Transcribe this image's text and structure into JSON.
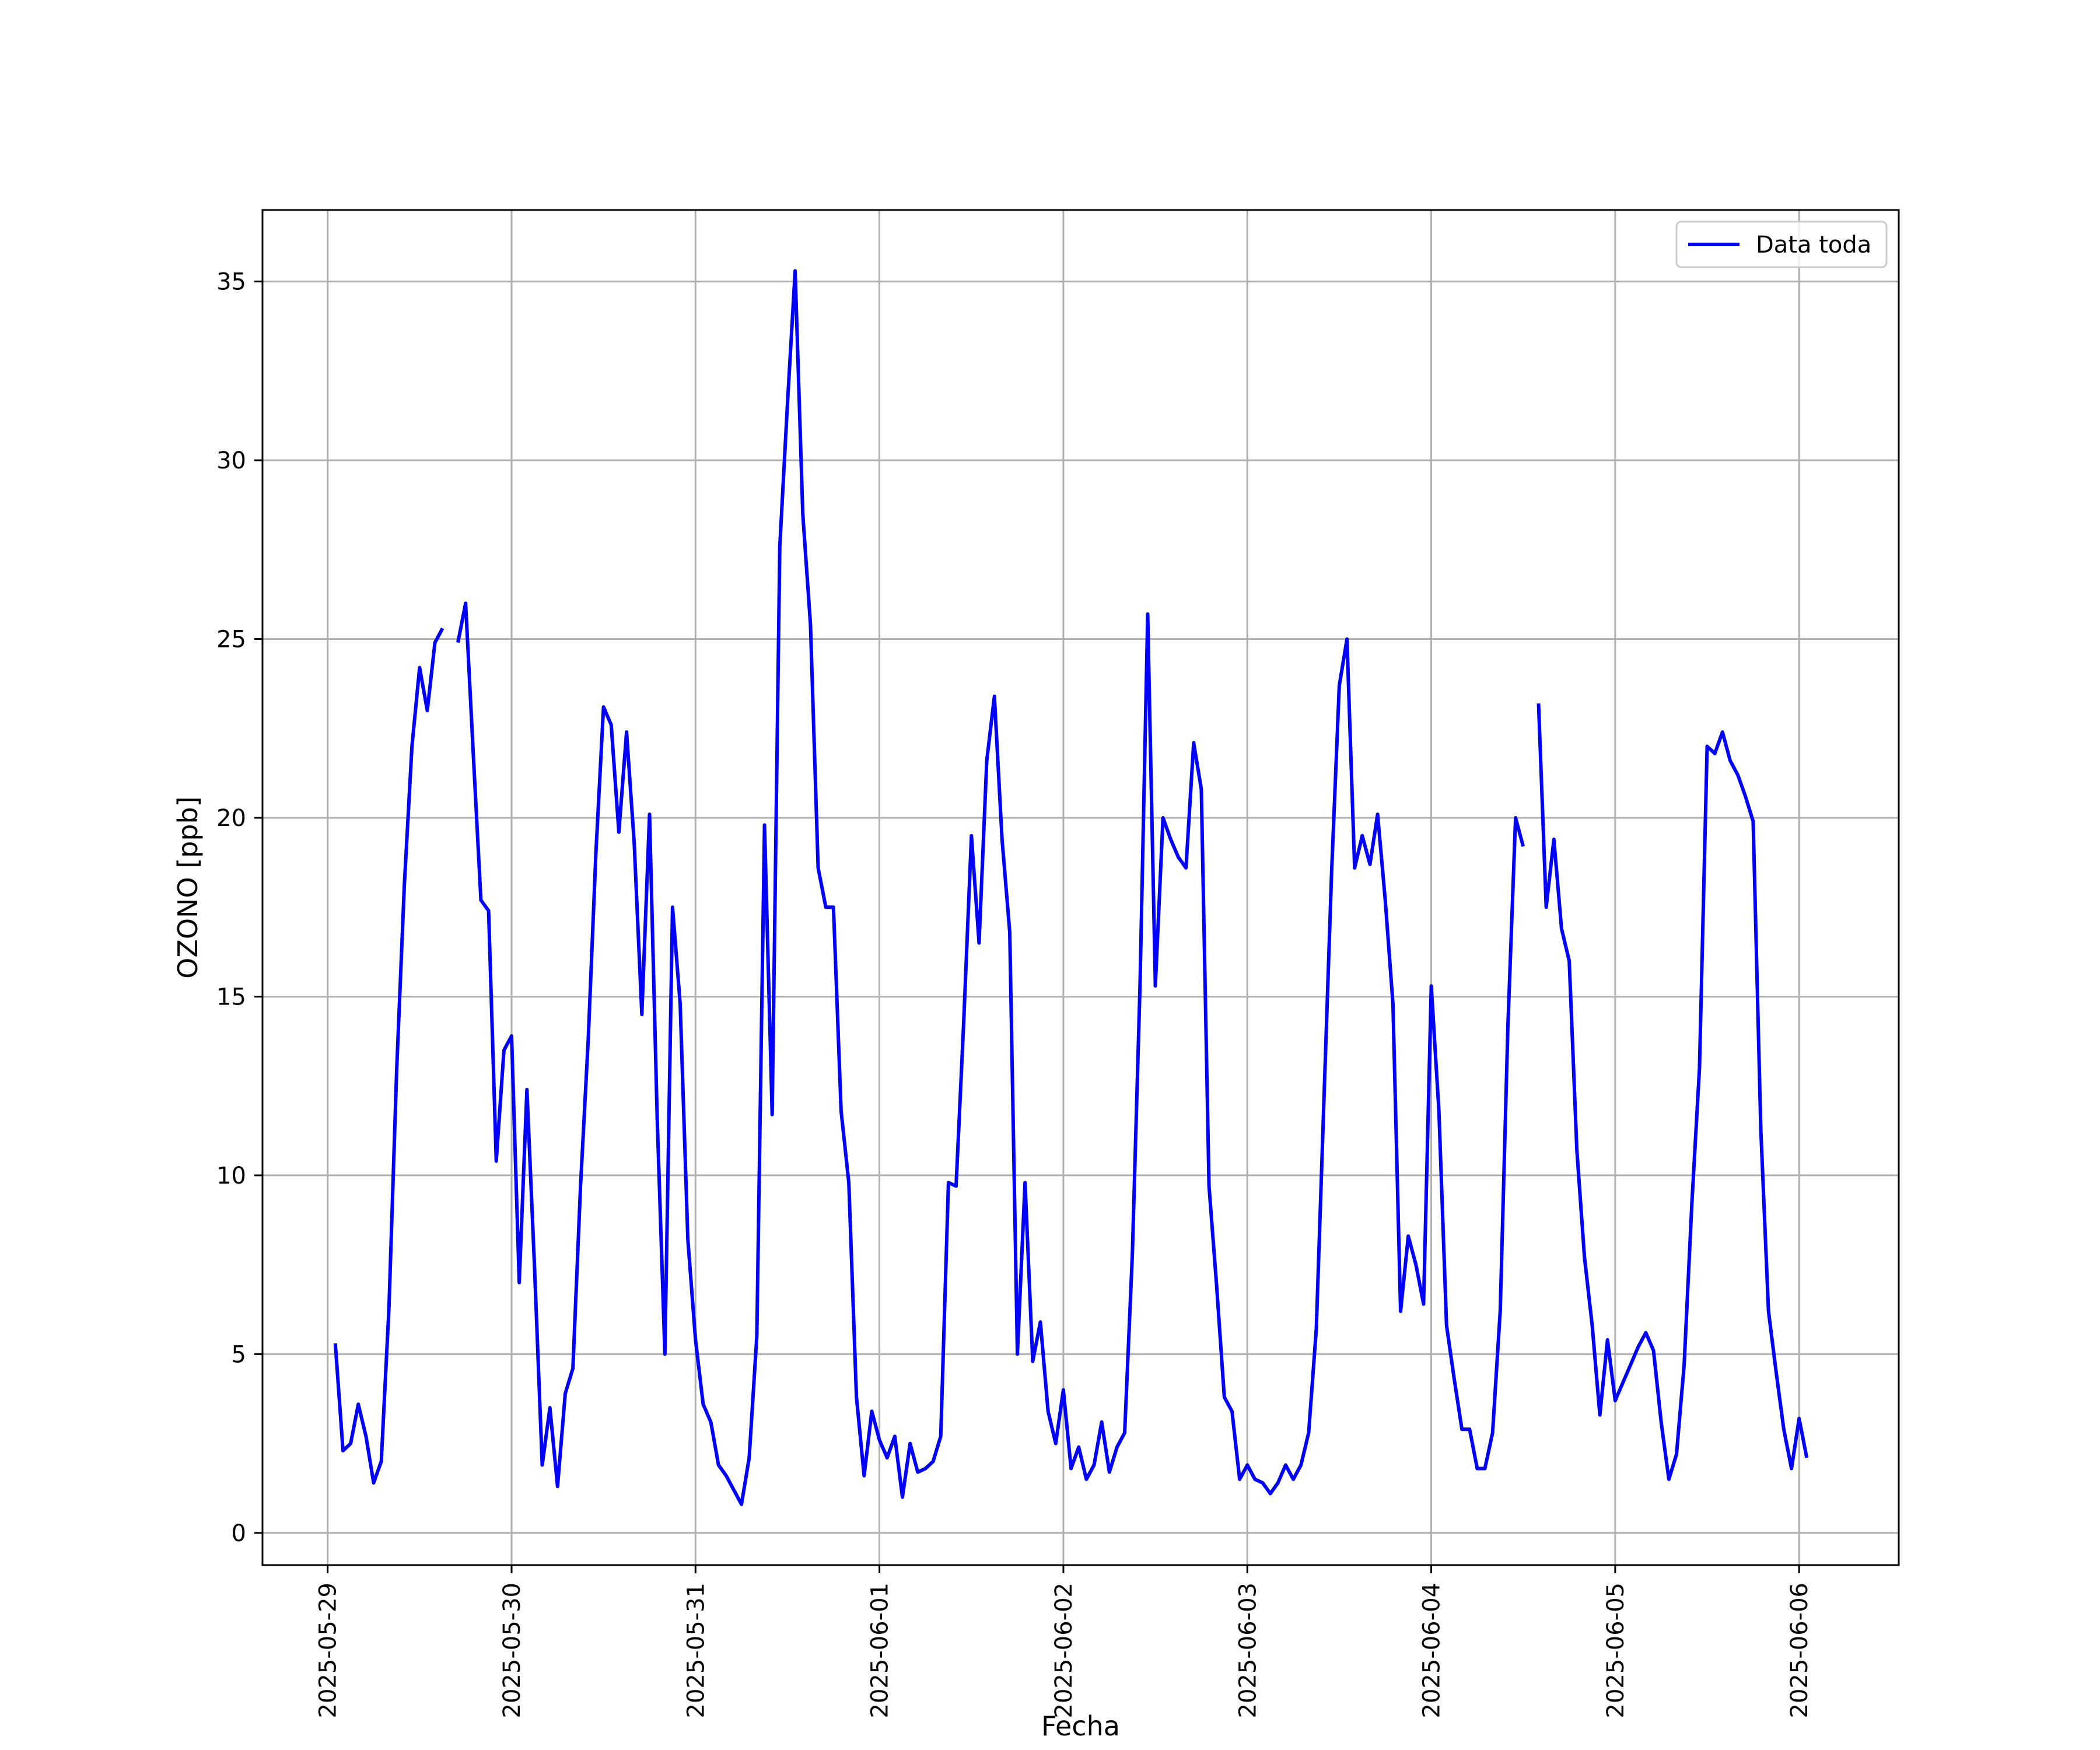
{
  "chart_data": {
    "type": "line",
    "xlabel": "Fecha",
    "ylabel": "OZONO [ppb]",
    "ylim": [
      -0.9,
      37
    ],
    "xlim": [
      "2025-05-28T15:30",
      "2025-06-06T13:00"
    ],
    "grid": true,
    "legend_position": "top-right",
    "x_ticks": [
      "2025-05-29",
      "2025-05-30",
      "2025-05-31",
      "2025-06-01",
      "2025-06-02",
      "2025-06-03",
      "2025-06-04",
      "2025-06-05",
      "2025-06-06"
    ],
    "y_ticks": [
      0,
      5,
      10,
      15,
      20,
      25,
      30,
      35
    ],
    "series": [
      {
        "name": "Data toda",
        "color": "#0000ff",
        "start": "2025-05-29T01:00",
        "step_hours": 1,
        "values": [
          5.3,
          2.3,
          2.5,
          3.6,
          2.7,
          1.4,
          2.0,
          6.3,
          12.9,
          18.1,
          22.0,
          24.2,
          23.0,
          24.9,
          25.3,
          null,
          24.9,
          26.0,
          21.8,
          17.7,
          17.4,
          10.4,
          13.5,
          13.9,
          7.0,
          12.4,
          7.4,
          1.9,
          3.5,
          1.3,
          3.9,
          4.6,
          9.7,
          13.8,
          19.0,
          23.1,
          22.6,
          19.6,
          22.4,
          19.3,
          14.5,
          20.1,
          11.6,
          5.0,
          17.5,
          14.8,
          8.2,
          5.4,
          3.6,
          3.1,
          1.9,
          1.6,
          1.2,
          0.8,
          2.1,
          5.5,
          19.8,
          11.7,
          27.6,
          31.6,
          35.3,
          28.5,
          25.4,
          18.6,
          17.5,
          17.5,
          11.8,
          9.8,
          3.8,
          1.6,
          3.4,
          2.6,
          2.1,
          2.7,
          1.0,
          2.5,
          1.7,
          1.8,
          2.0,
          2.7,
          9.8,
          9.7,
          14.3,
          19.5,
          16.5,
          21.6,
          23.4,
          19.4,
          16.8,
          5.0,
          9.8,
          4.8,
          5.9,
          3.4,
          2.5,
          4.0,
          1.8,
          2.4,
          1.5,
          1.9,
          3.1,
          1.7,
          2.4,
          2.8,
          7.8,
          15.3,
          25.7,
          15.3,
          20.0,
          19.4,
          18.9,
          18.6,
          22.1,
          20.8,
          9.7,
          6.9,
          3.8,
          3.4,
          1.5,
          1.9,
          1.5,
          1.4,
          1.1,
          1.4,
          1.9,
          1.5,
          1.9,
          2.8,
          5.7,
          12.1,
          18.5,
          23.7,
          25.0,
          18.6,
          19.5,
          18.7,
          20.1,
          17.7,
          14.8,
          6.2,
          8.3,
          7.5,
          6.4,
          15.3,
          11.8,
          5.8,
          4.3,
          2.9,
          2.9,
          1.8,
          1.8,
          2.8,
          6.2,
          14.2,
          20.0,
          19.2,
          null,
          23.2,
          17.5,
          19.4,
          16.9,
          16.0,
          10.7,
          7.7,
          5.8,
          3.3,
          5.4,
          3.7,
          4.2,
          4.7,
          5.2,
          5.6,
          5.1,
          3.1,
          1.5,
          2.2,
          4.7,
          9.2,
          13.0,
          22.0,
          21.8,
          22.4,
          21.6,
          21.2,
          20.6,
          19.9,
          11.3,
          6.2,
          4.5,
          2.9,
          1.8,
          3.2,
          2.1
        ]
      }
    ]
  }
}
